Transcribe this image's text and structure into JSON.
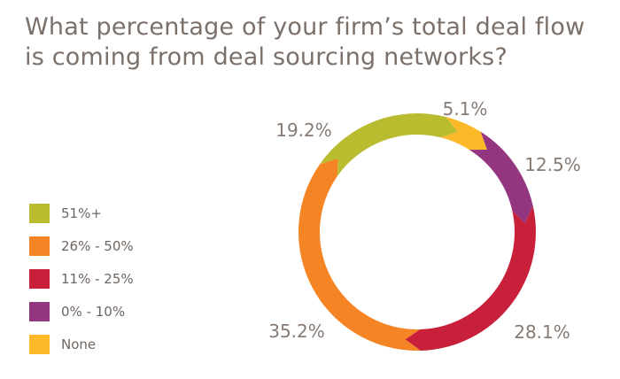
{
  "chart_data": {
    "type": "pie",
    "title": "What percentage of your firm’s total deal flow is coming from deal sourcing networks?",
    "legend_position": "left",
    "slices": [
      {
        "name": "None",
        "value": 5.1,
        "label": "5.1%",
        "color": "#FDB927"
      },
      {
        "name": "0% - 10%",
        "value": 12.5,
        "label": "12.5%",
        "color": "#93367F"
      },
      {
        "name": "11% - 25%",
        "value": 28.1,
        "label": "28.1%",
        "color": "#C8203A"
      },
      {
        "name": "26% - 50%",
        "value": 35.2,
        "label": "35.2%",
        "color": "#F58424"
      },
      {
        "name": "51%+",
        "value": 19.2,
        "label": "19.2%",
        "color": "#B9BC2F"
      }
    ],
    "legend_entries": [
      {
        "name": "51%+",
        "color": "#B9BC2F"
      },
      {
        "name": "26% - 50%",
        "color": "#F58424"
      },
      {
        "name": "11% - 25%",
        "color": "#C8203A"
      },
      {
        "name": "0% - 10%",
        "color": "#93367F"
      },
      {
        "name": "None",
        "color": "#FDB927"
      }
    ]
  }
}
